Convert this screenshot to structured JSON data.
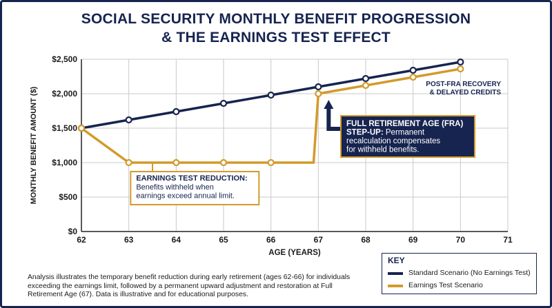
{
  "title_line1": "SOCIAL SECURITY MONTHLY BENEFIT PROGRESSION",
  "title_line2": "& THE EARNINGS TEST EFFECT",
  "colors": {
    "navy": "#16244f",
    "gold": "#d39a2b",
    "grid": "#c9c9c9"
  },
  "chart_data": {
    "type": "line",
    "xlabel": "AGE (YEARS)",
    "ylabel": "MONTHLY BENEFIT AMOUNT ($)",
    "xlim": [
      62,
      71
    ],
    "ylim": [
      0,
      2500
    ],
    "x_ticks": [
      62,
      63,
      64,
      65,
      66,
      67,
      68,
      69,
      70,
      71
    ],
    "y_ticks": [
      0,
      500,
      1000,
      1500,
      2000,
      2500
    ],
    "y_tick_labels": [
      "$0",
      "$500",
      "$1,000",
      "$1,500",
      "$2,000",
      "$2,500"
    ],
    "grid": true,
    "series": [
      {
        "name": "Standard Scenario (No Earnings Test)",
        "color": "#16244f",
        "points": [
          [
            62,
            1500
          ],
          [
            63,
            1620
          ],
          [
            64,
            1740
          ],
          [
            65,
            1860
          ],
          [
            66,
            1980
          ],
          [
            67,
            2100
          ],
          [
            68,
            2220
          ],
          [
            69,
            2340
          ],
          [
            70,
            2460
          ]
        ]
      },
      {
        "name": "Earnings Test Scenario",
        "color": "#d39a2b",
        "points": [
          [
            62,
            1500
          ],
          [
            63,
            1000
          ],
          [
            64,
            1000
          ],
          [
            65,
            1000
          ],
          [
            66,
            1000
          ],
          [
            66.9,
            1000
          ],
          [
            67,
            2000
          ],
          [
            68,
            2120
          ],
          [
            69,
            2240
          ],
          [
            70,
            2360
          ]
        ]
      }
    ],
    "annotations": {
      "reduction": {
        "title": "EARNINGS TEST REDUCTION:",
        "lines": [
          "Benefits withheld when",
          "earnings exceed annual limit."
        ]
      },
      "fra": {
        "title": "FULL RETIREMENT AGE (FRA)",
        "title2": "STEP-UP:",
        "line1_rest": "Permanent",
        "lines": [
          "recalculation compensates",
          "for withheld benefits."
        ]
      },
      "post_fra": [
        "POST-FRA RECOVERY",
        "& DELAYED CREDITS"
      ]
    }
  },
  "footnote": "Analysis illustrates the temporary benefit reduction during early retirement (ages 62-66) for individuals exceeding the earnings limit, followed by a permanent upward adjustment and restoration at Full Retirement Age (67). Data is illustrative and for educational purposes.",
  "key": {
    "title": "KEY",
    "items": [
      {
        "label": "Standard Scenario (No Earnings Test)",
        "color": "#16244f"
      },
      {
        "label": "Earnings Test Scenario",
        "color": "#d39a2b"
      }
    ]
  }
}
